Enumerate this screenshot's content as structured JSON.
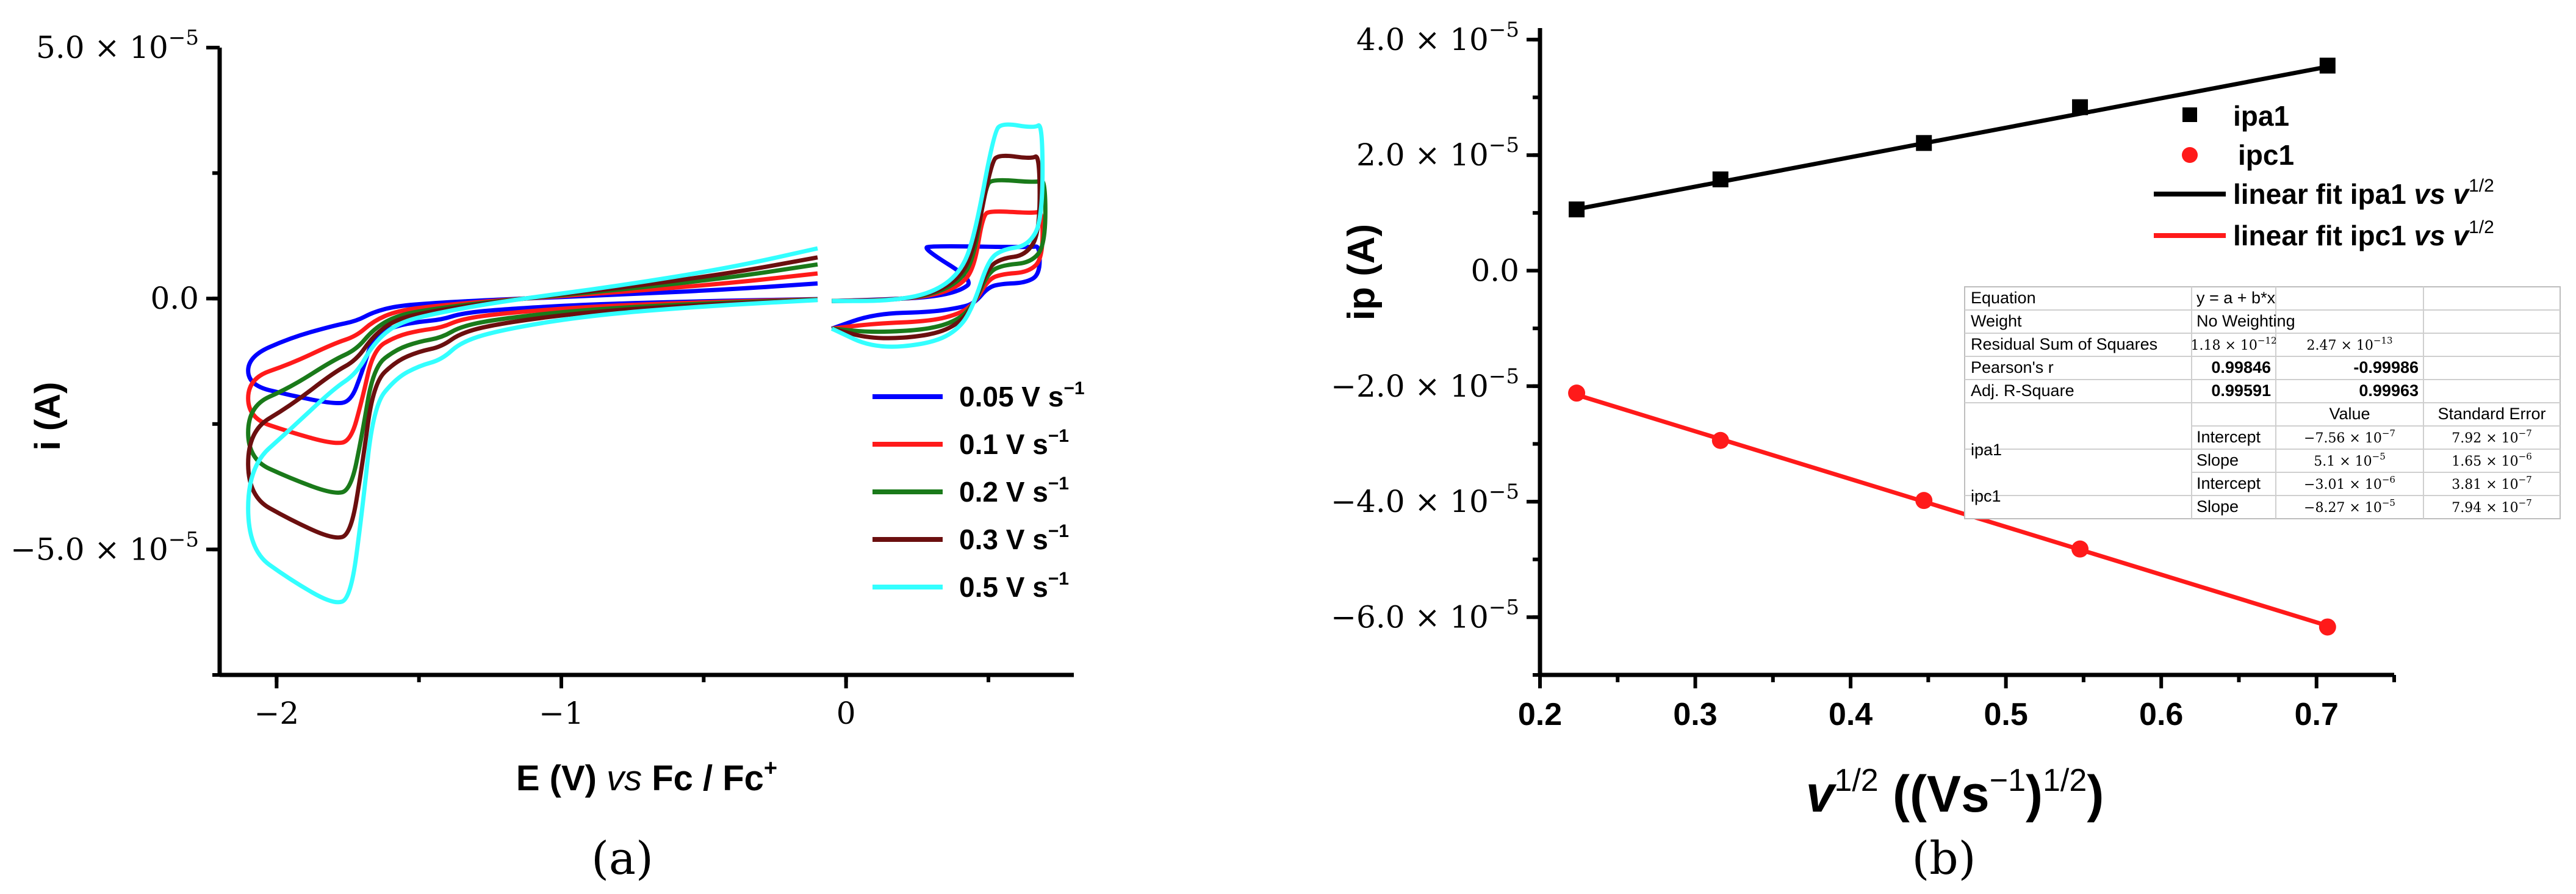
{
  "chart_data": [
    {
      "panel_label": "(a)",
      "type": "line",
      "title": "",
      "xlabel": {
        "main": "E (V) ",
        "italic": "vs",
        "end": " Fc / Fc",
        "sup": "+"
      },
      "ylabel": "i (A)",
      "xlim": [
        -2.2,
        0.8
      ],
      "ylim": [
        -7.5e-05,
        5e-05
      ],
      "xticks": [
        {
          "value": -2,
          "label": "−2"
        },
        {
          "value": -1,
          "label": "−1"
        },
        {
          "value": 0,
          "label": "0"
        }
      ],
      "yticks": [
        {
          "value": 5e-05,
          "mant": "5.0 × 10",
          "exp": "−5"
        },
        {
          "value": 0,
          "mant": "0.0",
          "exp": ""
        },
        {
          "value": -5e-05,
          "mant": "−5.0 × 10",
          "exp": "−5"
        }
      ],
      "legend_position": "right",
      "series": [
        {
          "name": "0.05 V s",
          "unit_sup": "−1",
          "color": "#0000ff",
          "scale": 0.3,
          "peak": 0.3,
          "cath": -2.1e-05,
          "vertex": 0.68
        },
        {
          "name": "0.1 V s",
          "unit_sup": "−1",
          "color": "#ff1a1a",
          "scale": 0.5,
          "peak": 0.51,
          "cath": -2.9e-05,
          "vertex": 0.69
        },
        {
          "name": "0.2 V s",
          "unit_sup": "−1",
          "color": "#1a7a1a",
          "scale": 0.68,
          "peak": 0.52,
          "cath": -3.9e-05,
          "vertex": 0.7
        },
        {
          "name": "0.3 V s",
          "unit_sup": "−1",
          "color": "#6b0f0f",
          "scale": 0.82,
          "peak": 0.54,
          "cath": -4.8e-05,
          "vertex": 0.68
        },
        {
          "name": "0.5 V s",
          "unit_sup": "−1",
          "color": "#33ffff",
          "scale": 1.0,
          "peak": 0.55,
          "cath": -6.1e-05,
          "vertex": 0.69
        }
      ]
    },
    {
      "panel_label": "(b)",
      "type": "scatter",
      "title": "",
      "xlabel": {
        "italic": "v",
        "sup1": "1/2",
        "main": " ((Vs",
        "sup2": "−1",
        "end": ")",
        "sup3": "1/2",
        "close": ")"
      },
      "ylabel": "ip (A)",
      "xlim": [
        0.2,
        0.75
      ],
      "ylim": [
        -7e-05,
        4.2e-05
      ],
      "xticks": [
        {
          "value": 0.2,
          "label": "0.2"
        },
        {
          "value": 0.3,
          "label": "0.3"
        },
        {
          "value": 0.4,
          "label": "0.4"
        },
        {
          "value": 0.5,
          "label": "0.5"
        },
        {
          "value": 0.6,
          "label": "0.6"
        },
        {
          "value": 0.7,
          "label": "0.7"
        }
      ],
      "yticks": [
        {
          "value": 4e-05,
          "mant": "4.0 × 10",
          "exp": "−5"
        },
        {
          "value": 2e-05,
          "mant": "2.0 × 10",
          "exp": "−5"
        },
        {
          "value": 0,
          "mant": "0.0",
          "exp": ""
        },
        {
          "value": -2e-05,
          "mant": "−2.0 × 10",
          "exp": "−5"
        },
        {
          "value": -4e-05,
          "mant": "−4.0 × 10",
          "exp": "−5"
        },
        {
          "value": -6e-05,
          "mant": "−6.0 × 10",
          "exp": "−5"
        }
      ],
      "series": [
        {
          "name": "ipa1",
          "marker": "square",
          "color": "#000000",
          "x": [
            0.2236,
            0.3162,
            0.4472,
            0.5477,
            0.7071
          ],
          "y": [
            1.06e-05,
            1.58e-05,
            2.21e-05,
            2.83e-05,
            3.55e-05
          ]
        },
        {
          "name": "ipc1",
          "marker": "circle",
          "color": "#ff1a1a",
          "x": [
            0.2236,
            0.3162,
            0.4472,
            0.5477,
            0.7071
          ],
          "y": [
            -2.12e-05,
            -2.94e-05,
            -3.98e-05,
            -4.82e-05,
            -6.17e-05
          ]
        }
      ],
      "fits": [
        {
          "name": "linear fit  ipa1 ",
          "vs": "vs",
          "v": " v",
          "sup": "1/2",
          "color": "#000000",
          "intercept": -7.56e-07,
          "slope": 5.1e-05
        },
        {
          "name": "linear fit  ipc1 ",
          "vs": "vs",
          "v": " v",
          "sup": "1/2",
          "color": "#ff1a1a",
          "intercept": -3.01e-06,
          "slope": -8.27e-05
        }
      ],
      "legend_position": "top-right",
      "stats_table": {
        "equation_label": "Equation",
        "equation": "y = a + b*x",
        "weight_label": "Weight",
        "weight": "No Weighting",
        "rss_label": "Residual Sum of Squares",
        "rss": [
          {
            "m": "1.18 × 10",
            "e": "−12"
          },
          {
            "m": "2.47 × 10",
            "e": "−13"
          }
        ],
        "pearson_label": "Pearson's r",
        "pearson": [
          "0.99846",
          "-0.99986"
        ],
        "adjr_label": "Adj. R-Square",
        "adjr": [
          "0.99591",
          "0.99963"
        ],
        "value_header": "Value",
        "se_header": "Standard Error",
        "rows": [
          {
            "group": "ipa1",
            "param": "Intercept",
            "value": {
              "m": "−7.56 × 10",
              "e": "−7"
            },
            "se": {
              "m": "7.92 × 10",
              "e": "−7"
            }
          },
          {
            "group": "",
            "param": "Slope",
            "value": {
              "m": "5.1 × 10",
              "e": "−5"
            },
            "se": {
              "m": "1.65 × 10",
              "e": "−6"
            }
          },
          {
            "group": "ipc1",
            "param": "Intercept",
            "value": {
              "m": "−3.01 × 10",
              "e": "−6"
            },
            "se": {
              "m": "3.81 × 10",
              "e": "−7"
            }
          },
          {
            "group": "",
            "param": "Slope",
            "value": {
              "m": "−8.27 × 10",
              "e": "−5"
            },
            "se": {
              "m": "7.94 × 10",
              "e": "−7"
            }
          }
        ]
      }
    }
  ]
}
